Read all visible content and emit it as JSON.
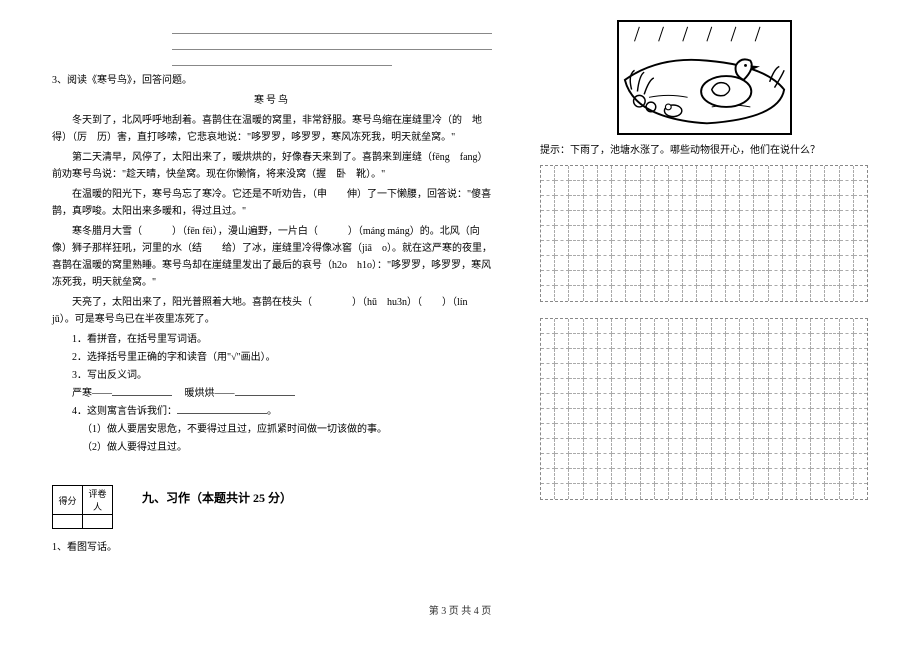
{
  "left": {
    "q3": "3、阅读《寒号鸟》，回答问题。",
    "story_title": "寒号鸟",
    "p1": "冬天到了，北风呼呼地刮着。喜鹊住在温暖的窝里，非常舒服。寒号鸟缩在崖缝里冷（的　地　得）（厉　历）害，直打哆嗦，它悲哀地说：\"哆罗罗，哆罗罗，寒风冻死我，明天就垒窝。\"",
    "p2": "第二天清早，风停了，太阳出来了，暖烘烘的，好像春天来到了。喜鹊来到崖缝（fēng　fang）前劝寒号鸟说：\"趁天晴，快垒窝。现在你懒惰，将来没窝（握　卧　靴）。\"",
    "p3": "在温暖的阳光下，寒号鸟忘了寒冷。它还是不听劝告，（申　　伸）了一下懒腰，回答说：\"傻喜鹊，真啰唆。太阳出来多暖和，得过且过。\"",
    "p4": "寒冬腊月大雪（　　　）（fēn fēi），漫山遍野，一片白（　　　）（máng máng）的。北风（向　像）狮子那样狂吼，河里的水（结　　给）了冰，崖缝里冷得像冰窖（jiā　o）。就在这严寒的夜里，喜鹊在温暖的窝里熟睡。寒号鸟却在崖缝里发出了最后的哀号（h2o　h1o）：\"哆罗罗，哆罗罗，寒风冻死我，明天就垒窝。\"",
    "p5": "天亮了，太阳出来了，阳光普照着大地。喜鹊在枝头（　　　　）（hū　hu3n）（　　）（lín jū）。可是寒号鸟已在半夜里冻死了。",
    "i1": "1．看拼音，在括号里写词语。",
    "i2": "2．选择括号里正确的字和读音（用\"√\"画出）。",
    "i3": "3．写出反义词。",
    "i3a": "严寒——",
    "i3b": "暖烘烘——",
    "i4": "4．这则寓言告诉我们：",
    "i4a": "（1）做人要居安思危，不要得过且过，应抓紧时间做一切该做的事。",
    "i4b": "（2）做人要得过且过。",
    "section9": "九、习作（本题共计 25 分）",
    "q1_right": "1、看图写话。"
  },
  "right": {
    "hint": "提示：下雨了，池塘水涨了。哪些动物很开心，他们在说什么？"
  },
  "score_labels": {
    "a": "得分",
    "b": "评卷人"
  },
  "footer": "第 3 页  共 4 页",
  "grid_cols": 23,
  "block1_rows": 9,
  "block2_rows": 12
}
